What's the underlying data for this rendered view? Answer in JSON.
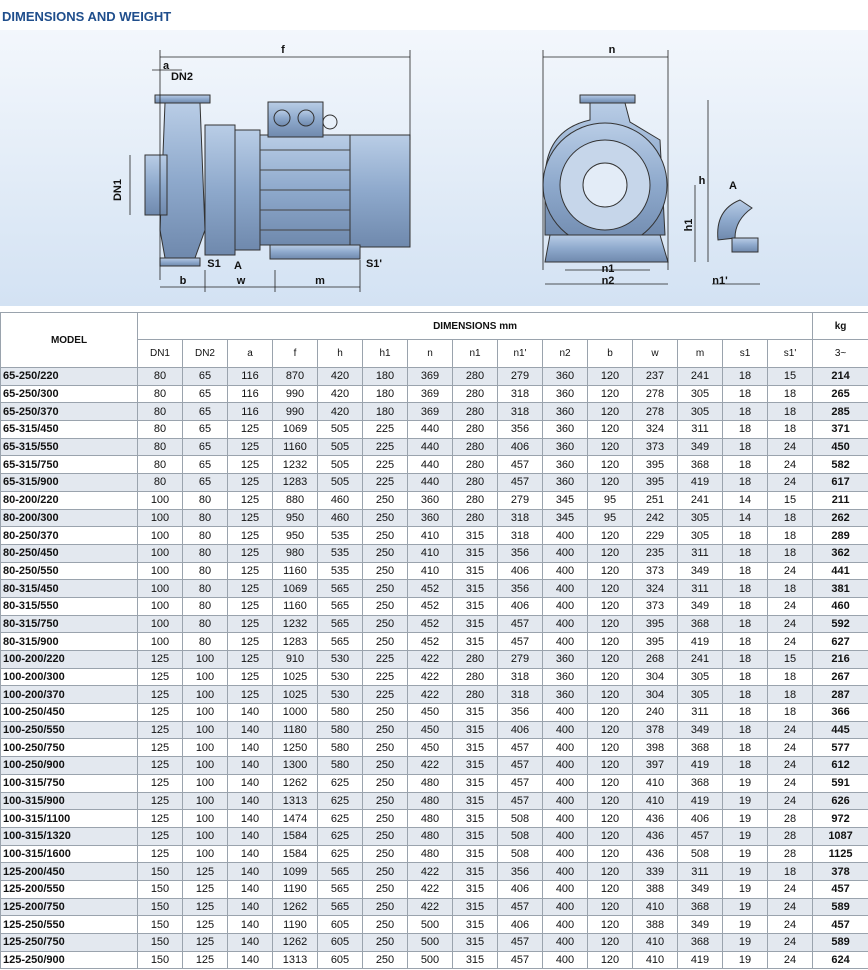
{
  "header": {
    "title": "DIMENSIONS AND WEIGHT"
  },
  "diagram": {
    "labels": [
      "f",
      "a",
      "DN2",
      "DN1",
      "S1",
      "A",
      "S1'",
      "b",
      "w",
      "m",
      "n",
      "h",
      "h1",
      "n1",
      "n2",
      "n1'",
      "A"
    ]
  },
  "table": {
    "model_header": "MODEL",
    "group_header": "DIMENSIONS mm",
    "weight_header": "kg",
    "weight_unit": "3~",
    "columns": [
      "DN1",
      "DN2",
      "a",
      "f",
      "h",
      "h1",
      "n",
      "n1",
      "n1'",
      "n2",
      "b",
      "w",
      "m",
      "s1",
      "s1'"
    ],
    "rows": [
      [
        "65-250/220",
        80,
        65,
        116,
        870,
        420,
        180,
        369,
        280,
        279,
        360,
        120,
        237,
        241,
        18,
        15,
        214
      ],
      [
        "65-250/300",
        80,
        65,
        116,
        990,
        420,
        180,
        369,
        280,
        318,
        360,
        120,
        278,
        305,
        18,
        18,
        265
      ],
      [
        "65-250/370",
        80,
        65,
        116,
        990,
        420,
        180,
        369,
        280,
        318,
        360,
        120,
        278,
        305,
        18,
        18,
        285
      ],
      [
        "65-315/450",
        80,
        65,
        125,
        1069,
        505,
        225,
        440,
        280,
        356,
        360,
        120,
        324,
        311,
        18,
        18,
        371
      ],
      [
        "65-315/550",
        80,
        65,
        125,
        1160,
        505,
        225,
        440,
        280,
        406,
        360,
        120,
        373,
        349,
        18,
        24,
        450
      ],
      [
        "65-315/750",
        80,
        65,
        125,
        1232,
        505,
        225,
        440,
        280,
        457,
        360,
        120,
        395,
        368,
        18,
        24,
        582
      ],
      [
        "65-315/900",
        80,
        65,
        125,
        1283,
        505,
        225,
        440,
        280,
        457,
        360,
        120,
        395,
        419,
        18,
        24,
        617
      ],
      [
        "80-200/220",
        100,
        80,
        125,
        880,
        460,
        250,
        360,
        280,
        279,
        345,
        95,
        251,
        241,
        14,
        15,
        211
      ],
      [
        "80-200/300",
        100,
        80,
        125,
        950,
        460,
        250,
        360,
        280,
        318,
        345,
        95,
        242,
        305,
        14,
        18,
        262
      ],
      [
        "80-250/370",
        100,
        80,
        125,
        950,
        535,
        250,
        410,
        315,
        318,
        400,
        120,
        229,
        305,
        18,
        18,
        289
      ],
      [
        "80-250/450",
        100,
        80,
        125,
        980,
        535,
        250,
        410,
        315,
        356,
        400,
        120,
        235,
        311,
        18,
        18,
        362
      ],
      [
        "80-250/550",
        100,
        80,
        125,
        1160,
        535,
        250,
        410,
        315,
        406,
        400,
        120,
        373,
        349,
        18,
        24,
        441
      ],
      [
        "80-315/450",
        100,
        80,
        125,
        1069,
        565,
        250,
        452,
        315,
        356,
        400,
        120,
        324,
        311,
        18,
        18,
        381
      ],
      [
        "80-315/550",
        100,
        80,
        125,
        1160,
        565,
        250,
        452,
        315,
        406,
        400,
        120,
        373,
        349,
        18,
        24,
        460
      ],
      [
        "80-315/750",
        100,
        80,
        125,
        1232,
        565,
        250,
        452,
        315,
        457,
        400,
        120,
        395,
        368,
        18,
        24,
        592
      ],
      [
        "80-315/900",
        100,
        80,
        125,
        1283,
        565,
        250,
        452,
        315,
        457,
        400,
        120,
        395,
        419,
        18,
        24,
        627
      ],
      [
        "100-200/220",
        125,
        100,
        125,
        910,
        530,
        225,
        422,
        280,
        279,
        360,
        120,
        268,
        241,
        18,
        15,
        216
      ],
      [
        "100-200/300",
        125,
        100,
        125,
        1025,
        530,
        225,
        422,
        280,
        318,
        360,
        120,
        304,
        305,
        18,
        18,
        267
      ],
      [
        "100-200/370",
        125,
        100,
        125,
        1025,
        530,
        225,
        422,
        280,
        318,
        360,
        120,
        304,
        305,
        18,
        18,
        287
      ],
      [
        "100-250/450",
        125,
        100,
        140,
        1000,
        580,
        250,
        450,
        315,
        356,
        400,
        120,
        240,
        311,
        18,
        18,
        366
      ],
      [
        "100-250/550",
        125,
        100,
        140,
        1180,
        580,
        250,
        450,
        315,
        406,
        400,
        120,
        378,
        349,
        18,
        24,
        445
      ],
      [
        "100-250/750",
        125,
        100,
        140,
        1250,
        580,
        250,
        450,
        315,
        457,
        400,
        120,
        398,
        368,
        18,
        24,
        577
      ],
      [
        "100-250/900",
        125,
        100,
        140,
        1300,
        580,
        250,
        422,
        315,
        457,
        400,
        120,
        397,
        419,
        18,
        24,
        612
      ],
      [
        "100-315/750",
        125,
        100,
        140,
        1262,
        625,
        250,
        480,
        315,
        457,
        400,
        120,
        410,
        368,
        19,
        24,
        591
      ],
      [
        "100-315/900",
        125,
        100,
        140,
        1313,
        625,
        250,
        480,
        315,
        457,
        400,
        120,
        410,
        419,
        19,
        24,
        626
      ],
      [
        "100-315/1100",
        125,
        100,
        140,
        1474,
        625,
        250,
        480,
        315,
        508,
        400,
        120,
        436,
        406,
        19,
        28,
        972
      ],
      [
        "100-315/1320",
        125,
        100,
        140,
        1584,
        625,
        250,
        480,
        315,
        508,
        400,
        120,
        436,
        457,
        19,
        28,
        1087
      ],
      [
        "100-315/1600",
        125,
        100,
        140,
        1584,
        625,
        250,
        480,
        315,
        508,
        400,
        120,
        436,
        508,
        19,
        28,
        1125
      ],
      [
        "125-200/450",
        150,
        125,
        140,
        1099,
        565,
        250,
        422,
        315,
        356,
        400,
        120,
        339,
        311,
        19,
        18,
        378
      ],
      [
        "125-200/550",
        150,
        125,
        140,
        1190,
        565,
        250,
        422,
        315,
        406,
        400,
        120,
        388,
        349,
        19,
        24,
        457
      ],
      [
        "125-200/750",
        150,
        125,
        140,
        1262,
        565,
        250,
        422,
        315,
        457,
        400,
        120,
        410,
        368,
        19,
        24,
        589
      ],
      [
        "125-250/550",
        150,
        125,
        140,
        1190,
        605,
        250,
        500,
        315,
        406,
        400,
        120,
        388,
        349,
        19,
        24,
        457
      ],
      [
        "125-250/750",
        150,
        125,
        140,
        1262,
        605,
        250,
        500,
        315,
        457,
        400,
        120,
        410,
        368,
        19,
        24,
        589
      ],
      [
        "125-250/900",
        150,
        125,
        140,
        1313,
        605,
        250,
        500,
        315,
        457,
        400,
        120,
        410,
        419,
        19,
        24,
        624
      ]
    ]
  }
}
